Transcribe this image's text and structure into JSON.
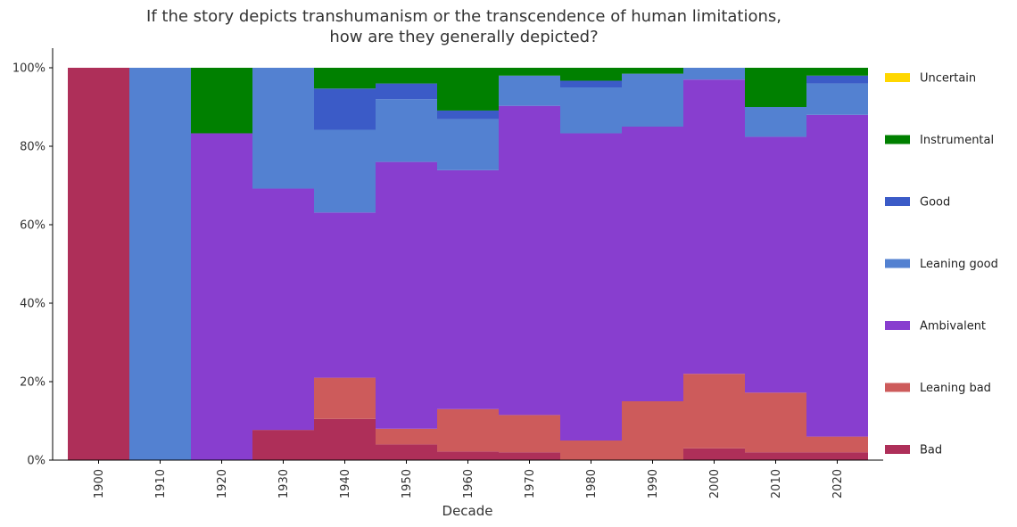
{
  "chart_data": {
    "type": "area",
    "stacked": true,
    "normalized": true,
    "title_line1": "If the story depicts transhumanism or the transcendence of human limitations,",
    "title_line2": "how are they generally depicted?",
    "xlabel": "Decade",
    "ylabel": "",
    "ylim": [
      0,
      100
    ],
    "yticks": [
      "0%",
      "20%",
      "40%",
      "60%",
      "80%",
      "100%"
    ],
    "categories": [
      "1900",
      "1910",
      "1920",
      "1930",
      "1940",
      "1950",
      "1960",
      "1970",
      "1980",
      "1990",
      "2000",
      "2010",
      "2020"
    ],
    "legend_position": "right",
    "series": [
      {
        "name": "Bad",
        "color": "#ae2f59",
        "values": [
          100,
          0,
          0,
          7.7,
          10.5,
          4,
          2.2,
          2,
          0,
          0,
          3,
          2,
          2
        ]
      },
      {
        "name": "Leaning bad",
        "color": "#cd5b5b",
        "values": [
          0,
          0,
          0,
          0,
          10.5,
          4,
          10.8,
          9.5,
          5,
          15,
          19,
          15.2,
          4
        ]
      },
      {
        "name": "Ambivalent",
        "color": "#883ecf",
        "values": [
          0,
          0,
          83.3,
          61.5,
          42.1,
          68,
          60.9,
          78.8,
          78.3,
          70,
          75,
          65.2,
          82
        ]
      },
      {
        "name": "Leaning good",
        "color": "#5381d1",
        "values": [
          0,
          100,
          0,
          30.8,
          21.1,
          16,
          13,
          7.7,
          11.7,
          13.5,
          3,
          7.6,
          8
        ]
      },
      {
        "name": "Good",
        "color": "#3b5bc7",
        "values": [
          0,
          0,
          0,
          0,
          10.5,
          4,
          2.2,
          0,
          1.7,
          0,
          0,
          0,
          2
        ]
      },
      {
        "name": "Instrumental",
        "color": "#008000",
        "values": [
          0,
          0,
          16.7,
          0,
          5.3,
          4,
          10.9,
          2,
          3.3,
          1.5,
          0,
          10,
          2
        ]
      },
      {
        "name": "Uncertain",
        "color": "#ffd700",
        "values": [
          0,
          0,
          0,
          0,
          0,
          0,
          0,
          0,
          0,
          0,
          0,
          0,
          0
        ]
      }
    ]
  }
}
